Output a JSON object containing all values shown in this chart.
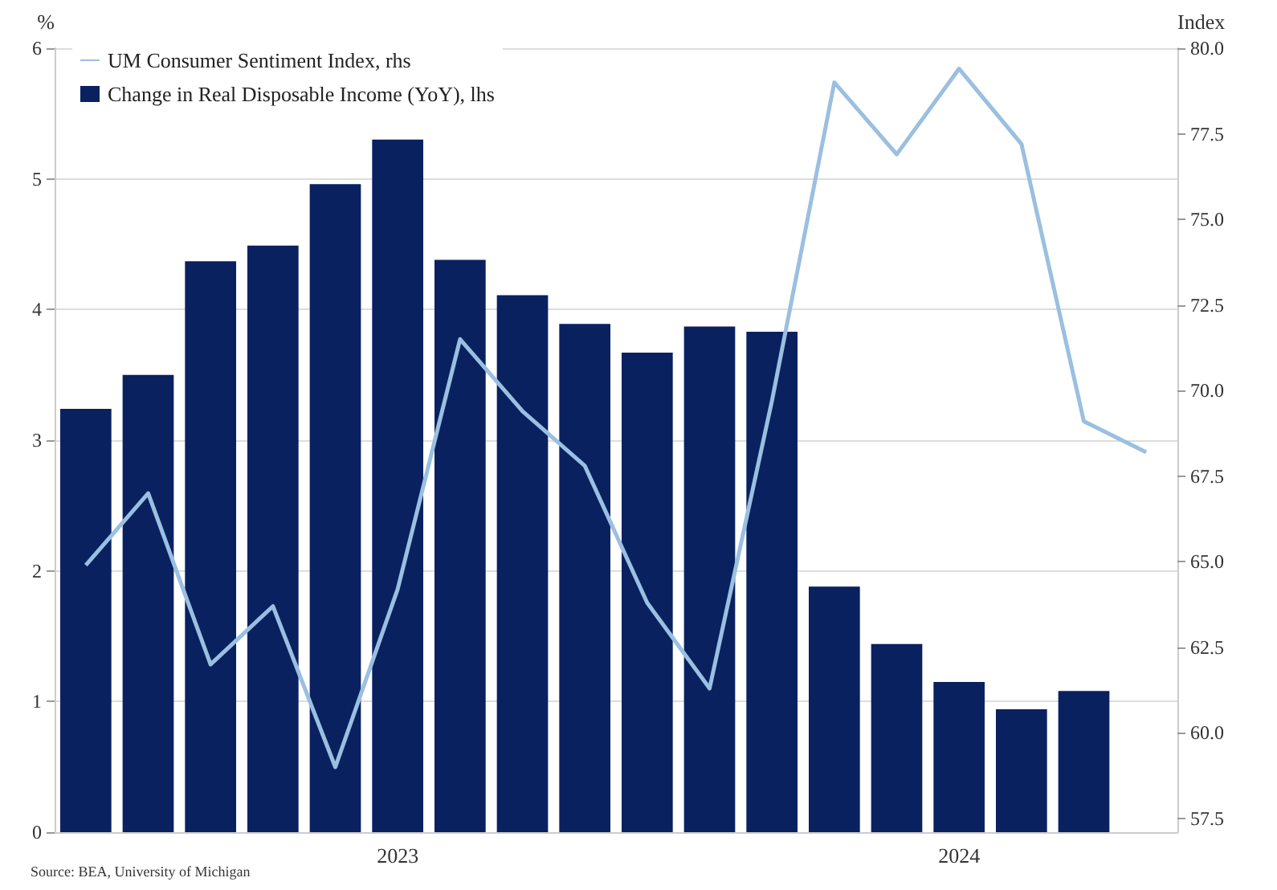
{
  "chart_data": {
    "type": "bar",
    "categories": [
      null,
      null,
      null,
      null,
      null,
      "2023",
      null,
      null,
      null,
      null,
      null,
      null,
      null,
      null,
      "2024",
      null,
      null,
      null
    ],
    "series": [
      {
        "name": "UM Consumer Sentiment Index, rhs",
        "type": "line",
        "axis": "y2",
        "color": "#9bbfe0",
        "values": [
          64.9,
          67.0,
          62.0,
          63.7,
          59.0,
          64.2,
          71.5,
          69.4,
          67.8,
          63.8,
          61.3,
          69.7,
          79.0,
          76.9,
          79.4,
          77.2,
          69.1,
          68.2
        ]
      },
      {
        "name": "Change in Real Disposable Income (YoY), lhs",
        "color": "#0a2160",
        "values": [
          3.24,
          3.5,
          4.37,
          4.49,
          4.96,
          5.3,
          4.38,
          4.11,
          3.89,
          3.67,
          3.87,
          3.83,
          1.88,
          1.44,
          1.15,
          0.94,
          1.08,
          null
        ]
      }
    ],
    "ylabel": "%",
    "y2label": "Index",
    "ylim": [
      0,
      6
    ],
    "yticks": [
      0,
      1,
      2,
      3,
      4,
      5,
      6
    ],
    "y2lim": [
      57.1,
      80.0
    ],
    "y2ticks": [
      {
        "value": 57.5,
        "label": "57.5"
      },
      {
        "value": 60,
        "label": "60.0"
      },
      {
        "value": 62.5,
        "label": "62.5"
      },
      {
        "value": 65,
        "label": "65.0"
      },
      {
        "value": 67.5,
        "label": "67.5"
      },
      {
        "value": 70,
        "label": "70.0"
      },
      {
        "value": 72.5,
        "label": "72.5"
      },
      {
        "value": 75,
        "label": "75.0"
      },
      {
        "value": 77.5,
        "label": "77.5"
      },
      {
        "value": 80,
        "label": "80.0"
      }
    ],
    "grid": "y",
    "legend": "top left",
    "marker": "none",
    "line_style": "solid",
    "annotations": [
      "Source: BEA, University of Michigan"
    ]
  }
}
